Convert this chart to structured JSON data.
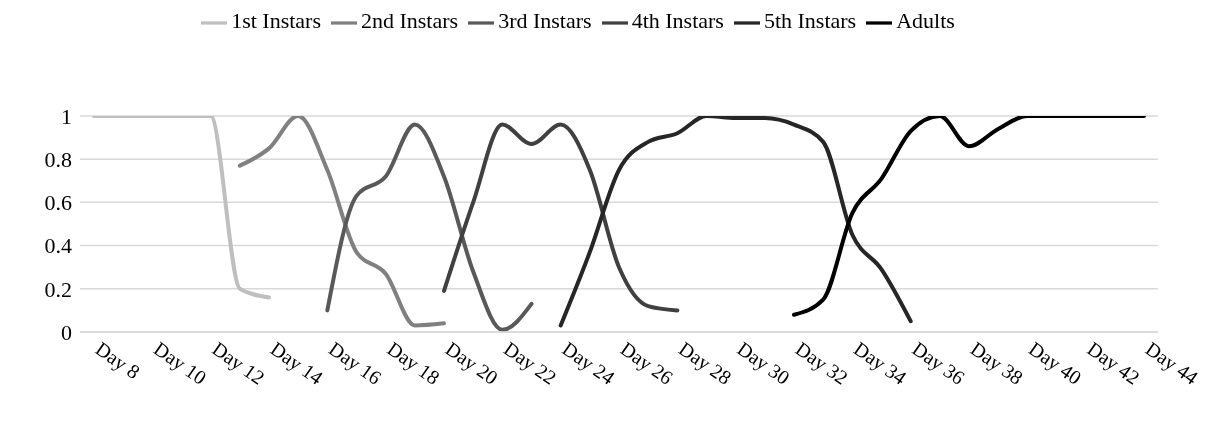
{
  "chart_data": {
    "type": "line",
    "categories": [
      "Day 8",
      null,
      "Day 10",
      null,
      "Day 12",
      null,
      "Day 14",
      null,
      "Day 16",
      null,
      "Day 18",
      null,
      "Day 20",
      null,
      "Day 22",
      null,
      "Day 24",
      null,
      "Day 26",
      null,
      "Day 28",
      null,
      "Day 30",
      null,
      "Day 32",
      null,
      "Day 34",
      null,
      "Day 36",
      null,
      "Day 38",
      null,
      "Day 40",
      null,
      "Day 42",
      null,
      "Day 44"
    ],
    "series": [
      {
        "name": "1st Instars",
        "color": "#bfbfbf",
        "values": [
          1,
          1,
          1,
          1,
          1,
          0.2,
          0.16,
          null,
          null,
          null,
          null,
          null,
          null,
          null,
          null,
          null,
          null,
          null,
          null,
          null,
          null,
          null,
          null,
          null,
          null,
          null,
          null,
          null,
          null,
          null,
          null,
          null,
          null,
          null,
          null,
          null,
          null
        ]
      },
      {
        "name": "2nd Instars",
        "color": "#808080",
        "values": [
          null,
          null,
          null,
          null,
          null,
          0.77,
          0.85,
          1,
          0.75,
          0.37,
          0.27,
          0.03,
          0.04,
          null,
          null,
          null,
          null,
          null,
          null,
          null,
          null,
          null,
          null,
          null,
          null,
          null,
          null,
          null,
          null,
          null,
          null,
          null,
          null,
          null,
          null,
          null,
          null
        ]
      },
      {
        "name": "3rd Instars",
        "color": "#595959",
        "values": [
          null,
          null,
          null,
          null,
          null,
          null,
          null,
          null,
          0.1,
          0.63,
          0.72,
          0.96,
          0.72,
          0.28,
          0.01,
          0.13,
          null,
          null,
          null,
          null,
          null,
          null,
          null,
          null,
          null,
          null,
          null,
          null,
          null,
          null,
          null,
          null,
          null,
          null,
          null,
          null,
          null
        ]
      },
      {
        "name": "4th Instars",
        "color": "#404040",
        "values": [
          null,
          null,
          null,
          null,
          null,
          null,
          null,
          null,
          null,
          null,
          null,
          null,
          0.19,
          0.6,
          0.96,
          0.87,
          0.96,
          0.75,
          0.3,
          0.12,
          0.1,
          null,
          null,
          null,
          null,
          null,
          null,
          null,
          null,
          null,
          null,
          null,
          null,
          null,
          null,
          null,
          null
        ]
      },
      {
        "name": "5th Instars",
        "color": "#262626",
        "values": [
          null,
          null,
          null,
          null,
          null,
          null,
          null,
          null,
          null,
          null,
          null,
          null,
          null,
          null,
          null,
          null,
          0.03,
          0.37,
          0.75,
          0.88,
          0.92,
          1,
          0.99,
          0.99,
          0.96,
          0.88,
          0.45,
          0.29,
          0.05,
          null,
          null,
          null,
          null,
          null,
          null,
          null,
          null
        ]
      },
      {
        "name": "Adults",
        "color": "#000000",
        "values": [
          null,
          null,
          null,
          null,
          null,
          null,
          null,
          null,
          null,
          null,
          null,
          null,
          null,
          null,
          null,
          null,
          null,
          null,
          null,
          null,
          null,
          null,
          null,
          null,
          0.08,
          0.15,
          0.55,
          0.71,
          0.93,
          1,
          0.86,
          0.94,
          1,
          1,
          1,
          1,
          1
        ]
      }
    ],
    "ylim": [
      0,
      1
    ],
    "yticks": [
      0,
      0.2,
      0.4,
      0.6,
      0.8,
      1
    ],
    "grid": "y",
    "legend": "top",
    "marker": "none",
    "line_style": "solid"
  }
}
